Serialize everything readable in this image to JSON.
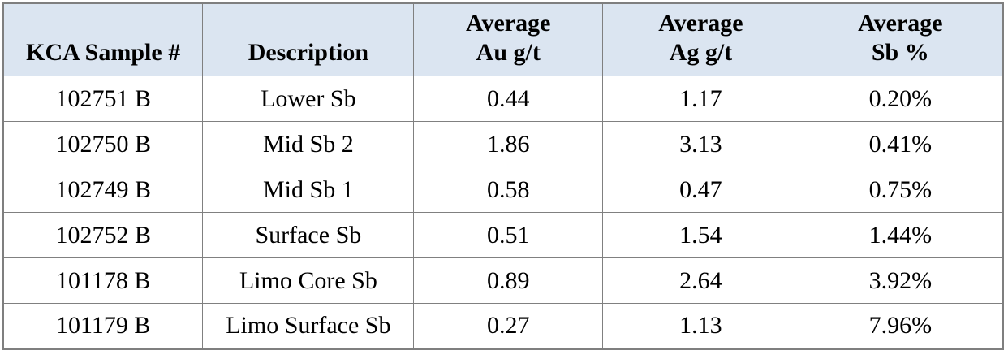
{
  "table": {
    "name": "KCA assay results table",
    "headers": [
      {
        "lines": [
          "KCA Sample #"
        ]
      },
      {
        "lines": [
          "Description"
        ]
      },
      {
        "lines": [
          "Average",
          "Au g/t"
        ]
      },
      {
        "lines": [
          "Average",
          "Ag g/t"
        ]
      },
      {
        "lines": [
          "Average",
          "Sb %"
        ]
      }
    ],
    "rows": [
      {
        "sample": "102751 B",
        "description": "Lower Sb",
        "avg_au_gt": "0.44",
        "avg_ag_gt": "1.17",
        "avg_sb_pct": "0.20%"
      },
      {
        "sample": "102750 B",
        "description": "Mid Sb 2",
        "avg_au_gt": "1.86",
        "avg_ag_gt": "3.13",
        "avg_sb_pct": "0.41%"
      },
      {
        "sample": "102749 B",
        "description": "Mid Sb 1",
        "avg_au_gt": "0.58",
        "avg_ag_gt": "0.47",
        "avg_sb_pct": "0.75%"
      },
      {
        "sample": "102752 B",
        "description": "Surface Sb",
        "avg_au_gt": "0.51",
        "avg_ag_gt": "1.54",
        "avg_sb_pct": "1.44%"
      },
      {
        "sample": "101178 B",
        "description": "Limo Core Sb",
        "avg_au_gt": "0.89",
        "avg_ag_gt": "2.64",
        "avg_sb_pct": "3.92%"
      },
      {
        "sample": "101179 B",
        "description": "Limo Surface Sb",
        "avg_au_gt": "0.27",
        "avg_ag_gt": "1.13",
        "avg_sb_pct": "7.96%"
      }
    ],
    "colors": {
      "header_bg": "#dbe5f1",
      "grid": "#808080",
      "outer_border": "#7f7f7f",
      "text": "#000000"
    }
  }
}
